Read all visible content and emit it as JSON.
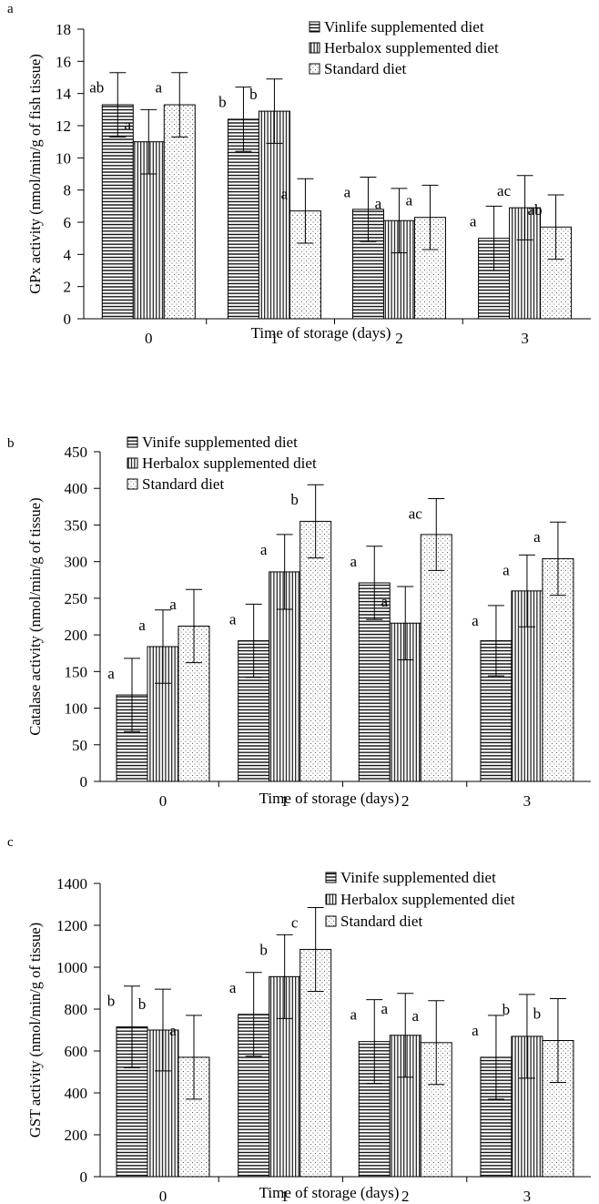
{
  "chart_data": [
    {
      "panel_label": "a",
      "type": "bar",
      "categories": [
        "0",
        "1",
        "2",
        "3"
      ],
      "xlabel": "Time of storage (days)",
      "ylabel": "GPx activity (nmol/min/g of fish tissue)",
      "ylim": [
        0,
        18
      ],
      "yticks": [
        0,
        2,
        4,
        6,
        8,
        10,
        12,
        14,
        16,
        18
      ],
      "legend": {
        "placement": "top-right"
      },
      "series": [
        {
          "name": "Vinlife supplemented diet",
          "pattern": "horizontal",
          "values": [
            13.3,
            12.4,
            6.8,
            5.0
          ],
          "errors": [
            2.0,
            2.0,
            2.0,
            2.0
          ],
          "letters": [
            "ab",
            "b",
            "a",
            "a"
          ]
        },
        {
          "name": "Herbalox supplemented diet",
          "pattern": "vertical",
          "values": [
            11.0,
            12.9,
            6.1,
            6.9
          ],
          "errors": [
            2.0,
            2.0,
            2.0,
            2.0
          ],
          "letters": [
            "a",
            "b",
            "a",
            "ac"
          ]
        },
        {
          "name": "Standard diet",
          "pattern": "dots",
          "values": [
            13.3,
            6.7,
            6.3,
            5.7
          ],
          "errors": [
            2.0,
            2.0,
            2.0,
            2.0
          ],
          "letters": [
            "a",
            "a",
            "a",
            "ab"
          ]
        }
      ]
    },
    {
      "panel_label": "b",
      "type": "bar",
      "categories": [
        "0",
        "1",
        "2",
        "3"
      ],
      "xlabel": "Time of storage (days)",
      "ylabel": "Catalase activity (nmol/min/g of tissue)",
      "ylim": [
        0,
        450
      ],
      "yticks": [
        0,
        50,
        100,
        150,
        200,
        250,
        300,
        350,
        400,
        450
      ],
      "legend": {
        "placement": "top-left"
      },
      "series": [
        {
          "name": "Vinife supplemented diet",
          "pattern": "horizontal",
          "values": [
            118,
            192,
            271,
            192
          ],
          "errors": [
            50,
            50,
            50,
            48
          ],
          "letters": [
            "a",
            "a",
            "a",
            "a"
          ]
        },
        {
          "name": "Herbalox supplemented diet",
          "pattern": "vertical",
          "values": [
            184,
            286,
            216,
            260
          ],
          "errors": [
            50,
            51,
            50,
            49
          ],
          "letters": [
            "a",
            "a",
            "a",
            "a"
          ]
        },
        {
          "name": "Standard diet",
          "pattern": "dots",
          "values": [
            212,
            355,
            337,
            304
          ],
          "errors": [
            50,
            50,
            49,
            50
          ],
          "letters": [
            "a",
            "b",
            "ac",
            "a"
          ]
        }
      ]
    },
    {
      "panel_label": "c",
      "type": "bar",
      "categories": [
        "0",
        "1",
        "2",
        "3"
      ],
      "xlabel": "Time of storage (days)",
      "ylabel": "GST activity (nmol/min/g of tissue)",
      "ylim": [
        0,
        1400
      ],
      "yticks": [
        0,
        200,
        400,
        600,
        800,
        1000,
        1200,
        1400
      ],
      "legend": {
        "placement": "top-right"
      },
      "series": [
        {
          "name": "Vinife supplemented diet",
          "pattern": "horizontal",
          "values": [
            715,
            775,
            645,
            570
          ],
          "errors": [
            195,
            200,
            200,
            200
          ],
          "letters": [
            "b",
            "a",
            "a",
            "a"
          ]
        },
        {
          "name": "Herbalox supplemented diet",
          "pattern": "vertical",
          "values": [
            700,
            955,
            675,
            670
          ],
          "errors": [
            195,
            200,
            200,
            200
          ],
          "letters": [
            "b",
            "b",
            "a",
            "b"
          ]
        },
        {
          "name": "Standard diet",
          "pattern": "dots",
          "values": [
            570,
            1085,
            640,
            650
          ],
          "errors": [
            200,
            200,
            200,
            200
          ],
          "letters": [
            "a",
            "c",
            "a",
            "b"
          ]
        }
      ]
    }
  ]
}
